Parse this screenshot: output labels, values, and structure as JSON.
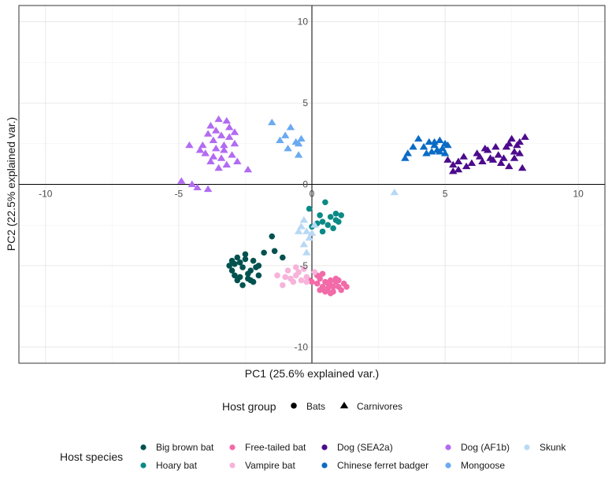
{
  "chart_data": {
    "type": "scatter",
    "xlabel": "PC1 (25.6% explained var.)",
    "ylabel": "PC2 (22.5% explained var.)",
    "xlim": [
      -11,
      11
    ],
    "ylim": [
      -11,
      11
    ],
    "x_ticks": [
      -10,
      -5,
      0,
      5,
      10
    ],
    "y_ticks": [
      -10,
      -5,
      0,
      5,
      10
    ],
    "grid": true,
    "legend_position": "bottom",
    "shape_legend": {
      "title": "Host group",
      "items": [
        {
          "label": "Bats",
          "shape": "circle"
        },
        {
          "label": "Carnivores",
          "shape": "triangle"
        }
      ]
    },
    "color_legend": {
      "title": "Host species",
      "items": [
        {
          "label": "Big brown bat",
          "color": "#01524f"
        },
        {
          "label": "Hoary bat",
          "color": "#0a8a86"
        },
        {
          "label": "Free-tailed bat",
          "color": "#f26aa8"
        },
        {
          "label": "Vampire bat",
          "color": "#f7b3d9"
        },
        {
          "label": "Dog (SEA2a)",
          "color": "#4c0b8c"
        },
        {
          "label": "Chinese ferret badger",
          "color": "#0a6bc4"
        },
        {
          "label": "Dog (AF1b)",
          "color": "#b26bf2"
        },
        {
          "label": "Mongoose",
          "color": "#6aaaf0"
        },
        {
          "label": "Skunk",
          "color": "#b8d9f5"
        }
      ]
    },
    "series": [
      {
        "name": "Big brown bat",
        "group": "Bats",
        "shape": "circle",
        "color": "#01524f",
        "points": [
          [
            -2.8,
            -4.5
          ],
          [
            -2.5,
            -4.6
          ],
          [
            -2.9,
            -4.9
          ],
          [
            -2.6,
            -5.1
          ],
          [
            -3.0,
            -5.3
          ],
          [
            -2.3,
            -5.3
          ],
          [
            -2.7,
            -5.7
          ],
          [
            -2.4,
            -5.8
          ],
          [
            -2.2,
            -6.0
          ],
          [
            -2.6,
            -6.2
          ],
          [
            -2.1,
            -5.1
          ],
          [
            -2.5,
            -4.3
          ],
          [
            -2.2,
            -4.7
          ],
          [
            -2.9,
            -5.6
          ],
          [
            -2.0,
            -5.6
          ],
          [
            -3.1,
            -5.0
          ],
          [
            -2.4,
            -5.5
          ],
          [
            -2.7,
            -4.8
          ],
          [
            -1.5,
            -3.2
          ],
          [
            -1.8,
            -4.2
          ],
          [
            -1.4,
            -4.1
          ],
          [
            -1.1,
            -4.5
          ],
          [
            -2.0,
            -5.0
          ],
          [
            -3.0,
            -4.7
          ],
          [
            -2.8,
            -5.9
          ],
          [
            -2.3,
            -5.9
          ]
        ]
      },
      {
        "name": "Hoary bat",
        "group": "Bats",
        "shape": "circle",
        "color": "#0a8a86",
        "points": [
          [
            -0.1,
            -1.5
          ],
          [
            0.3,
            -1.9
          ],
          [
            0.7,
            -2.0
          ],
          [
            0.9,
            -1.8
          ],
          [
            1.0,
            -2.3
          ],
          [
            0.6,
            -2.5
          ],
          [
            0.2,
            -2.4
          ],
          [
            0.0,
            -2.6
          ],
          [
            0.4,
            -2.9
          ],
          [
            0.8,
            -2.7
          ],
          [
            1.1,
            -1.9
          ],
          [
            0.5,
            -1.1
          ],
          [
            0.9,
            -2.2
          ],
          [
            0.4,
            -2.3
          ]
        ]
      },
      {
        "name": "Free-tailed bat",
        "group": "Bats",
        "shape": "circle",
        "color": "#f26aa8",
        "points": [
          [
            0.3,
            -5.8
          ],
          [
            0.5,
            -6.0
          ],
          [
            0.7,
            -6.2
          ],
          [
            0.9,
            -6.0
          ],
          [
            0.6,
            -6.4
          ],
          [
            0.8,
            -6.6
          ],
          [
            1.0,
            -6.3
          ],
          [
            1.2,
            -6.1
          ],
          [
            0.4,
            -6.3
          ],
          [
            0.2,
            -6.1
          ],
          [
            0.9,
            -5.8
          ],
          [
            0.7,
            -5.9
          ],
          [
            1.1,
            -6.5
          ],
          [
            0.5,
            -6.6
          ],
          [
            0.3,
            -6.5
          ],
          [
            1.3,
            -6.3
          ],
          [
            0.0,
            -6.0
          ],
          [
            -0.1,
            -5.9
          ],
          [
            0.6,
            -6.1
          ],
          [
            0.8,
            -6.3
          ],
          [
            0.4,
            -5.5
          ],
          [
            1.0,
            -5.9
          ],
          [
            0.2,
            -5.6
          ],
          [
            0.7,
            -6.7
          ]
        ]
      },
      {
        "name": "Vampire bat",
        "group": "Bats",
        "shape": "circle",
        "color": "#f7b3d9",
        "points": [
          [
            -0.9,
            -5.3
          ],
          [
            -0.6,
            -5.6
          ],
          [
            -0.4,
            -5.9
          ],
          [
            -0.8,
            -5.8
          ],
          [
            -1.1,
            -6.2
          ],
          [
            -0.5,
            -5.4
          ],
          [
            -0.2,
            -5.7
          ],
          [
            -0.7,
            -6.0
          ],
          [
            -1.0,
            -5.7
          ],
          [
            -0.3,
            -5.2
          ],
          [
            0.1,
            -5.4
          ],
          [
            -1.3,
            -5.6
          ],
          [
            -0.6,
            -5.1
          ],
          [
            -0.2,
            -6.0
          ]
        ]
      },
      {
        "name": "Dog (SEA2a)",
        "group": "Carnivores",
        "shape": "triangle",
        "color": "#4c0b8c",
        "points": [
          [
            6.2,
            1.9
          ],
          [
            6.6,
            2.1
          ],
          [
            7.0,
            1.8
          ],
          [
            7.3,
            2.3
          ],
          [
            7.6,
            2.0
          ],
          [
            7.8,
            2.6
          ],
          [
            7.5,
            2.8
          ],
          [
            8.0,
            2.9
          ],
          [
            7.2,
            1.6
          ],
          [
            6.8,
            1.5
          ],
          [
            6.4,
            1.4
          ],
          [
            6.0,
            1.3
          ],
          [
            7.6,
            1.6
          ],
          [
            7.9,
            1.0
          ],
          [
            7.4,
            1.1
          ],
          [
            5.1,
            1.5
          ],
          [
            5.3,
            1.2
          ],
          [
            5.5,
            1.4
          ],
          [
            5.7,
            1.7
          ],
          [
            5.8,
            1.1
          ],
          [
            6.5,
            2.2
          ],
          [
            6.9,
            2.3
          ],
          [
            7.7,
            2.4
          ],
          [
            5.3,
            0.8
          ],
          [
            5.5,
            0.9
          ],
          [
            6.7,
            1.6
          ],
          [
            7.1,
            1.3
          ],
          [
            7.4,
            2.5
          ],
          [
            6.3,
            1.7
          ],
          [
            7.8,
            1.9
          ]
        ]
      },
      {
        "name": "Chinese ferret badger",
        "group": "Carnivores",
        "shape": "triangle",
        "color": "#0a6bc4",
        "points": [
          [
            4.4,
            2.6
          ],
          [
            4.6,
            2.4
          ],
          [
            4.8,
            2.7
          ],
          [
            5.0,
            2.5
          ],
          [
            4.7,
            2.1
          ],
          [
            4.9,
            2.2
          ],
          [
            5.1,
            2.4
          ],
          [
            4.5,
            2.0
          ],
          [
            4.0,
            2.8
          ],
          [
            3.8,
            2.3
          ],
          [
            3.6,
            1.9
          ],
          [
            3.5,
            1.6
          ],
          [
            4.2,
            2.3
          ],
          [
            4.8,
            2.0
          ],
          [
            5.0,
            1.9
          ],
          [
            4.6,
            2.6
          ],
          [
            4.3,
            1.9
          ]
        ]
      },
      {
        "name": "Dog (AF1b)",
        "group": "Carnivores",
        "shape": "triangle",
        "color": "#b26bf2",
        "points": [
          [
            -3.8,
            3.6
          ],
          [
            -3.5,
            4.0
          ],
          [
            -3.2,
            3.9
          ],
          [
            -3.6,
            3.3
          ],
          [
            -3.9,
            3.1
          ],
          [
            -3.4,
            3.0
          ],
          [
            -3.1,
            3.5
          ],
          [
            -3.7,
            2.7
          ],
          [
            -4.1,
            2.4
          ],
          [
            -3.3,
            2.4
          ],
          [
            -2.9,
            2.5
          ],
          [
            -3.6,
            2.2
          ],
          [
            -4.0,
            1.9
          ],
          [
            -3.0,
            1.8
          ],
          [
            -3.4,
            1.6
          ],
          [
            -3.8,
            1.4
          ],
          [
            -2.8,
            1.4
          ],
          [
            -3.2,
            1.2
          ],
          [
            -3.5,
            1.0
          ],
          [
            -4.2,
            2.1
          ],
          [
            -4.6,
            2.4
          ],
          [
            -4.9,
            0.2
          ],
          [
            -4.5,
            0.0
          ],
          [
            -4.3,
            -0.2
          ],
          [
            -3.9,
            -0.3
          ],
          [
            -2.4,
            0.9
          ],
          [
            -3.1,
            2.9
          ],
          [
            -2.9,
            3.2
          ],
          [
            -3.7,
            1.7
          ],
          [
            -3.3,
            2.1
          ]
        ]
      },
      {
        "name": "Mongoose",
        "group": "Carnivores",
        "shape": "triangle",
        "color": "#6aaaf0",
        "points": [
          [
            -1.5,
            3.8
          ],
          [
            -1.2,
            2.7
          ],
          [
            -1.0,
            3.0
          ],
          [
            -0.8,
            3.5
          ],
          [
            -0.6,
            2.6
          ],
          [
            -0.4,
            2.8
          ],
          [
            -0.5,
            1.8
          ],
          [
            -0.5,
            2.5
          ],
          [
            -0.9,
            2.2
          ]
        ]
      },
      {
        "name": "Skunk",
        "group": "Carnivores",
        "shape": "triangle",
        "color": "#b8d9f5",
        "points": [
          [
            3.1,
            -0.5
          ],
          [
            -0.3,
            -2.2
          ],
          [
            -0.4,
            -2.6
          ],
          [
            -0.2,
            -2.9
          ],
          [
            -0.1,
            -3.3
          ],
          [
            -0.3,
            -3.7
          ],
          [
            -0.2,
            -4.2
          ],
          [
            0.0,
            -3.0
          ],
          [
            0.1,
            -2.5
          ],
          [
            -0.5,
            -2.9
          ]
        ]
      }
    ]
  }
}
